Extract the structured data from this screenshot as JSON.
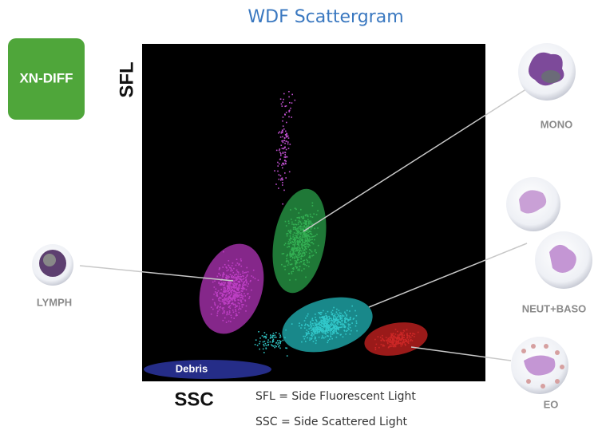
{
  "title": "WDF Scattergram",
  "badge": "XN-DIFF",
  "axes": {
    "y": "SFL",
    "x": "SSC"
  },
  "clusters": {
    "debris": "Debris"
  },
  "cells": [
    {
      "label": "MONO"
    },
    {
      "label": "LYMPH"
    },
    {
      "label": "NEUT+BASO"
    },
    {
      "label": "EO"
    }
  ],
  "notes": [
    "SFL = Side Fluorescent Light",
    "SSC = Side Scattered Light"
  ]
}
